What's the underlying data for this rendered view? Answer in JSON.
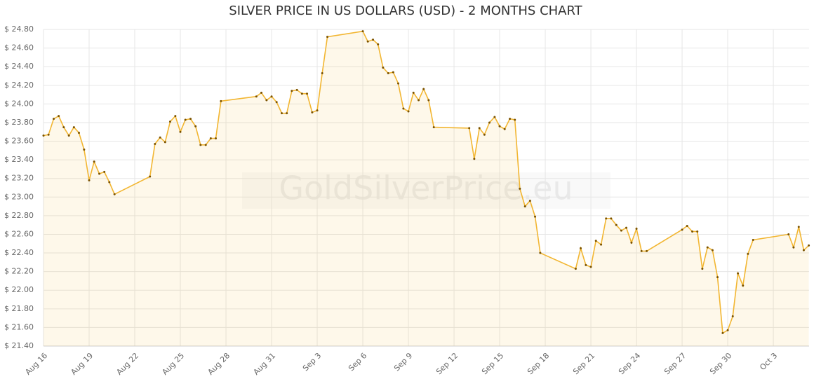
{
  "chart_data": {
    "type": "line",
    "title": "SILVER PRICE IN US DOLLARS (USD) - 2 MONTHS CHART",
    "watermark": "GoldSilverPrice.eu",
    "x": [
      0,
      0.33,
      0.67,
      1,
      1.33,
      1.67,
      2,
      2.33,
      2.67,
      3,
      3.33,
      3.67,
      4,
      4.33,
      4.67,
      7,
      7.33,
      7.67,
      8,
      8.33,
      8.67,
      9,
      9.33,
      9.67,
      10,
      10.33,
      10.67,
      11,
      11.33,
      11.67,
      14,
      14.33,
      14.67,
      15,
      15.33,
      15.67,
      16,
      16.33,
      16.67,
      17,
      17.33,
      17.67,
      18,
      18.33,
      18.67,
      21,
      21.33,
      21.67,
      22,
      22.33,
      22.67,
      23,
      23.33,
      23.67,
      24,
      24.33,
      24.67,
      25,
      25.33,
      25.67,
      28,
      28.33,
      28.67,
      29,
      29.33,
      29.67,
      30,
      30.33,
      30.67,
      31,
      31.33,
      31.67,
      32,
      32.33,
      32.67,
      35,
      35.33,
      35.67,
      36,
      36.33,
      36.67,
      37,
      37.33,
      37.67,
      38,
      38.33,
      38.67,
      39,
      39.33,
      39.67,
      42,
      42.33,
      42.67,
      43,
      43.33,
      43.67,
      44,
      44.33,
      44.67,
      45,
      45.33,
      45.67,
      46,
      46.33,
      46.67,
      49,
      49.33,
      49.67,
      50,
      50.33
    ],
    "series": [
      {
        "color": "#f2b632",
        "values": [
          23.66,
          23.67,
          23.84,
          23.87,
          23.75,
          23.66,
          23.75,
          23.69,
          23.51,
          23.18,
          23.38,
          23.25,
          23.27,
          23.16,
          23.03,
          23.22,
          23.57,
          23.64,
          23.59,
          23.81,
          23.87,
          23.7,
          23.83,
          23.84,
          23.76,
          23.56,
          23.56,
          23.63,
          23.63,
          24.03,
          24.08,
          24.12,
          24.04,
          24.08,
          24.02,
          23.9,
          23.9,
          24.14,
          24.15,
          24.11,
          24.11,
          23.91,
          23.93,
          24.33,
          24.72,
          24.78,
          24.67,
          24.69,
          24.64,
          24.39,
          24.33,
          24.34,
          24.22,
          23.95,
          23.92,
          24.12,
          24.04,
          24.16,
          24.04,
          23.75,
          23.74,
          23.41,
          23.74,
          23.67,
          23.8,
          23.86,
          23.76,
          23.73,
          23.84,
          23.83,
          23.09,
          22.9,
          22.96,
          22.79,
          22.4,
          22.23,
          22.45,
          22.27,
          22.25,
          22.53,
          22.49,
          22.77,
          22.77,
          22.7,
          22.64,
          22.67,
          22.51,
          22.66,
          22.42,
          22.42,
          22.65,
          22.69,
          22.63,
          22.63,
          22.23,
          22.46,
          22.43,
          22.14,
          21.54,
          21.57,
          21.72,
          22.18,
          22.05,
          22.39,
          22.54,
          22.6,
          22.46,
          22.68,
          22.43,
          22.48
        ]
      }
    ],
    "xlim": [
      0,
      50.35
    ],
    "xticks": [
      {
        "value": 0,
        "label": "Aug 16"
      },
      {
        "value": 3,
        "label": "Aug 19"
      },
      {
        "value": 6,
        "label": "Aug 22"
      },
      {
        "value": 9,
        "label": "Aug 25"
      },
      {
        "value": 12,
        "label": "Aug 28"
      },
      {
        "value": 15,
        "label": "Aug 31"
      },
      {
        "value": 18,
        "label": "Sep 3"
      },
      {
        "value": 21,
        "label": "Sep 6"
      },
      {
        "value": 24,
        "label": "Sep 9"
      },
      {
        "value": 27,
        "label": "Sep 12"
      },
      {
        "value": 30,
        "label": "Sep 15"
      },
      {
        "value": 33,
        "label": "Sep 18"
      },
      {
        "value": 36,
        "label": "Sep 21"
      },
      {
        "value": 39,
        "label": "Sep 24"
      },
      {
        "value": 42,
        "label": "Sep 27"
      },
      {
        "value": 45,
        "label": "Sep 30"
      },
      {
        "value": 48,
        "label": "Oct 3"
      }
    ],
    "ylim": [
      21.4,
      24.8
    ],
    "yticks": [
      {
        "value": 21.4,
        "label": "$ 21.40"
      },
      {
        "value": 21.6,
        "label": "$ 21.60"
      },
      {
        "value": 21.8,
        "label": "$ 21.80"
      },
      {
        "value": 22.0,
        "label": "$ 22.00"
      },
      {
        "value": 22.2,
        "label": "$ 22.20"
      },
      {
        "value": 22.4,
        "label": "$ 22.40"
      },
      {
        "value": 22.6,
        "label": "$ 22.60"
      },
      {
        "value": 22.8,
        "label": "$ 22.80"
      },
      {
        "value": 23.0,
        "label": "$ 23.00"
      },
      {
        "value": 23.2,
        "label": "$ 23.20"
      },
      {
        "value": 23.4,
        "label": "$ 23.40"
      },
      {
        "value": 23.6,
        "label": "$ 23.60"
      },
      {
        "value": 23.8,
        "label": "$ 23.80"
      },
      {
        "value": 24.0,
        "label": "$ 24.00"
      },
      {
        "value": 24.2,
        "label": "$ 24.20"
      },
      {
        "value": 24.4,
        "label": "$ 24.40"
      },
      {
        "value": 24.6,
        "label": "$ 24.60"
      },
      {
        "value": 24.8,
        "label": "$ 24.80"
      }
    ],
    "grid": true
  }
}
